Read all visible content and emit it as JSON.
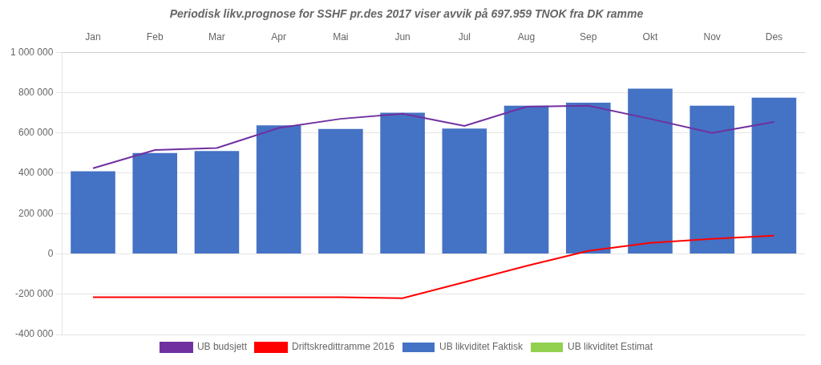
{
  "chart_data": {
    "type": "bar",
    "title": "Periodisk likv.prognose for SSHF pr.des 2017 viser avvik på 697.959 TNOK fra DK ramme",
    "categories": [
      "Jan",
      "Feb",
      "Mar",
      "Apr",
      "Mai",
      "Jun",
      "Jul",
      "Aug",
      "Sep",
      "Okt",
      "Nov",
      "Des"
    ],
    "series": [
      {
        "name": "UB likviditet Faktisk",
        "type": "bar",
        "color": "#4472C4",
        "values": [
          410000,
          500000,
          510000,
          638000,
          620000,
          700000,
          622000,
          735000,
          750000,
          820000,
          735000,
          775000
        ]
      },
      {
        "name": "UB likviditet Estimat",
        "type": "bar",
        "color": "#92D050",
        "values": [
          null,
          null,
          null,
          null,
          null,
          null,
          null,
          null,
          null,
          null,
          null,
          null
        ]
      },
      {
        "name": "UB budsjett",
        "type": "line",
        "color": "#7030A0",
        "values": [
          425000,
          515000,
          525000,
          625000,
          670000,
          695000,
          635000,
          730000,
          735000,
          670000,
          600000,
          655000
        ]
      },
      {
        "name": "Driftskredittramme 2016",
        "type": "line",
        "color": "#FF0000",
        "values": [
          -215000,
          -215000,
          -215000,
          -215000,
          -215000,
          -220000,
          -140000,
          -60000,
          15000,
          55000,
          75000,
          90000
        ]
      }
    ],
    "ylim": [
      -400000,
      1000000
    ],
    "yticks": [
      {
        "value": -400000,
        "label": "-400 000"
      },
      {
        "value": -200000,
        "label": "-200 000"
      },
      0,
      {
        "value": 200000,
        "label": "200 000"
      },
      {
        "value": 400000,
        "label": "400 000"
      },
      {
        "value": 600000,
        "label": "600 000"
      },
      {
        "value": 800000,
        "label": "800 000"
      },
      {
        "value": 1000000,
        "label": "1 000 000"
      }
    ],
    "grid": true,
    "legend": "bottom"
  }
}
